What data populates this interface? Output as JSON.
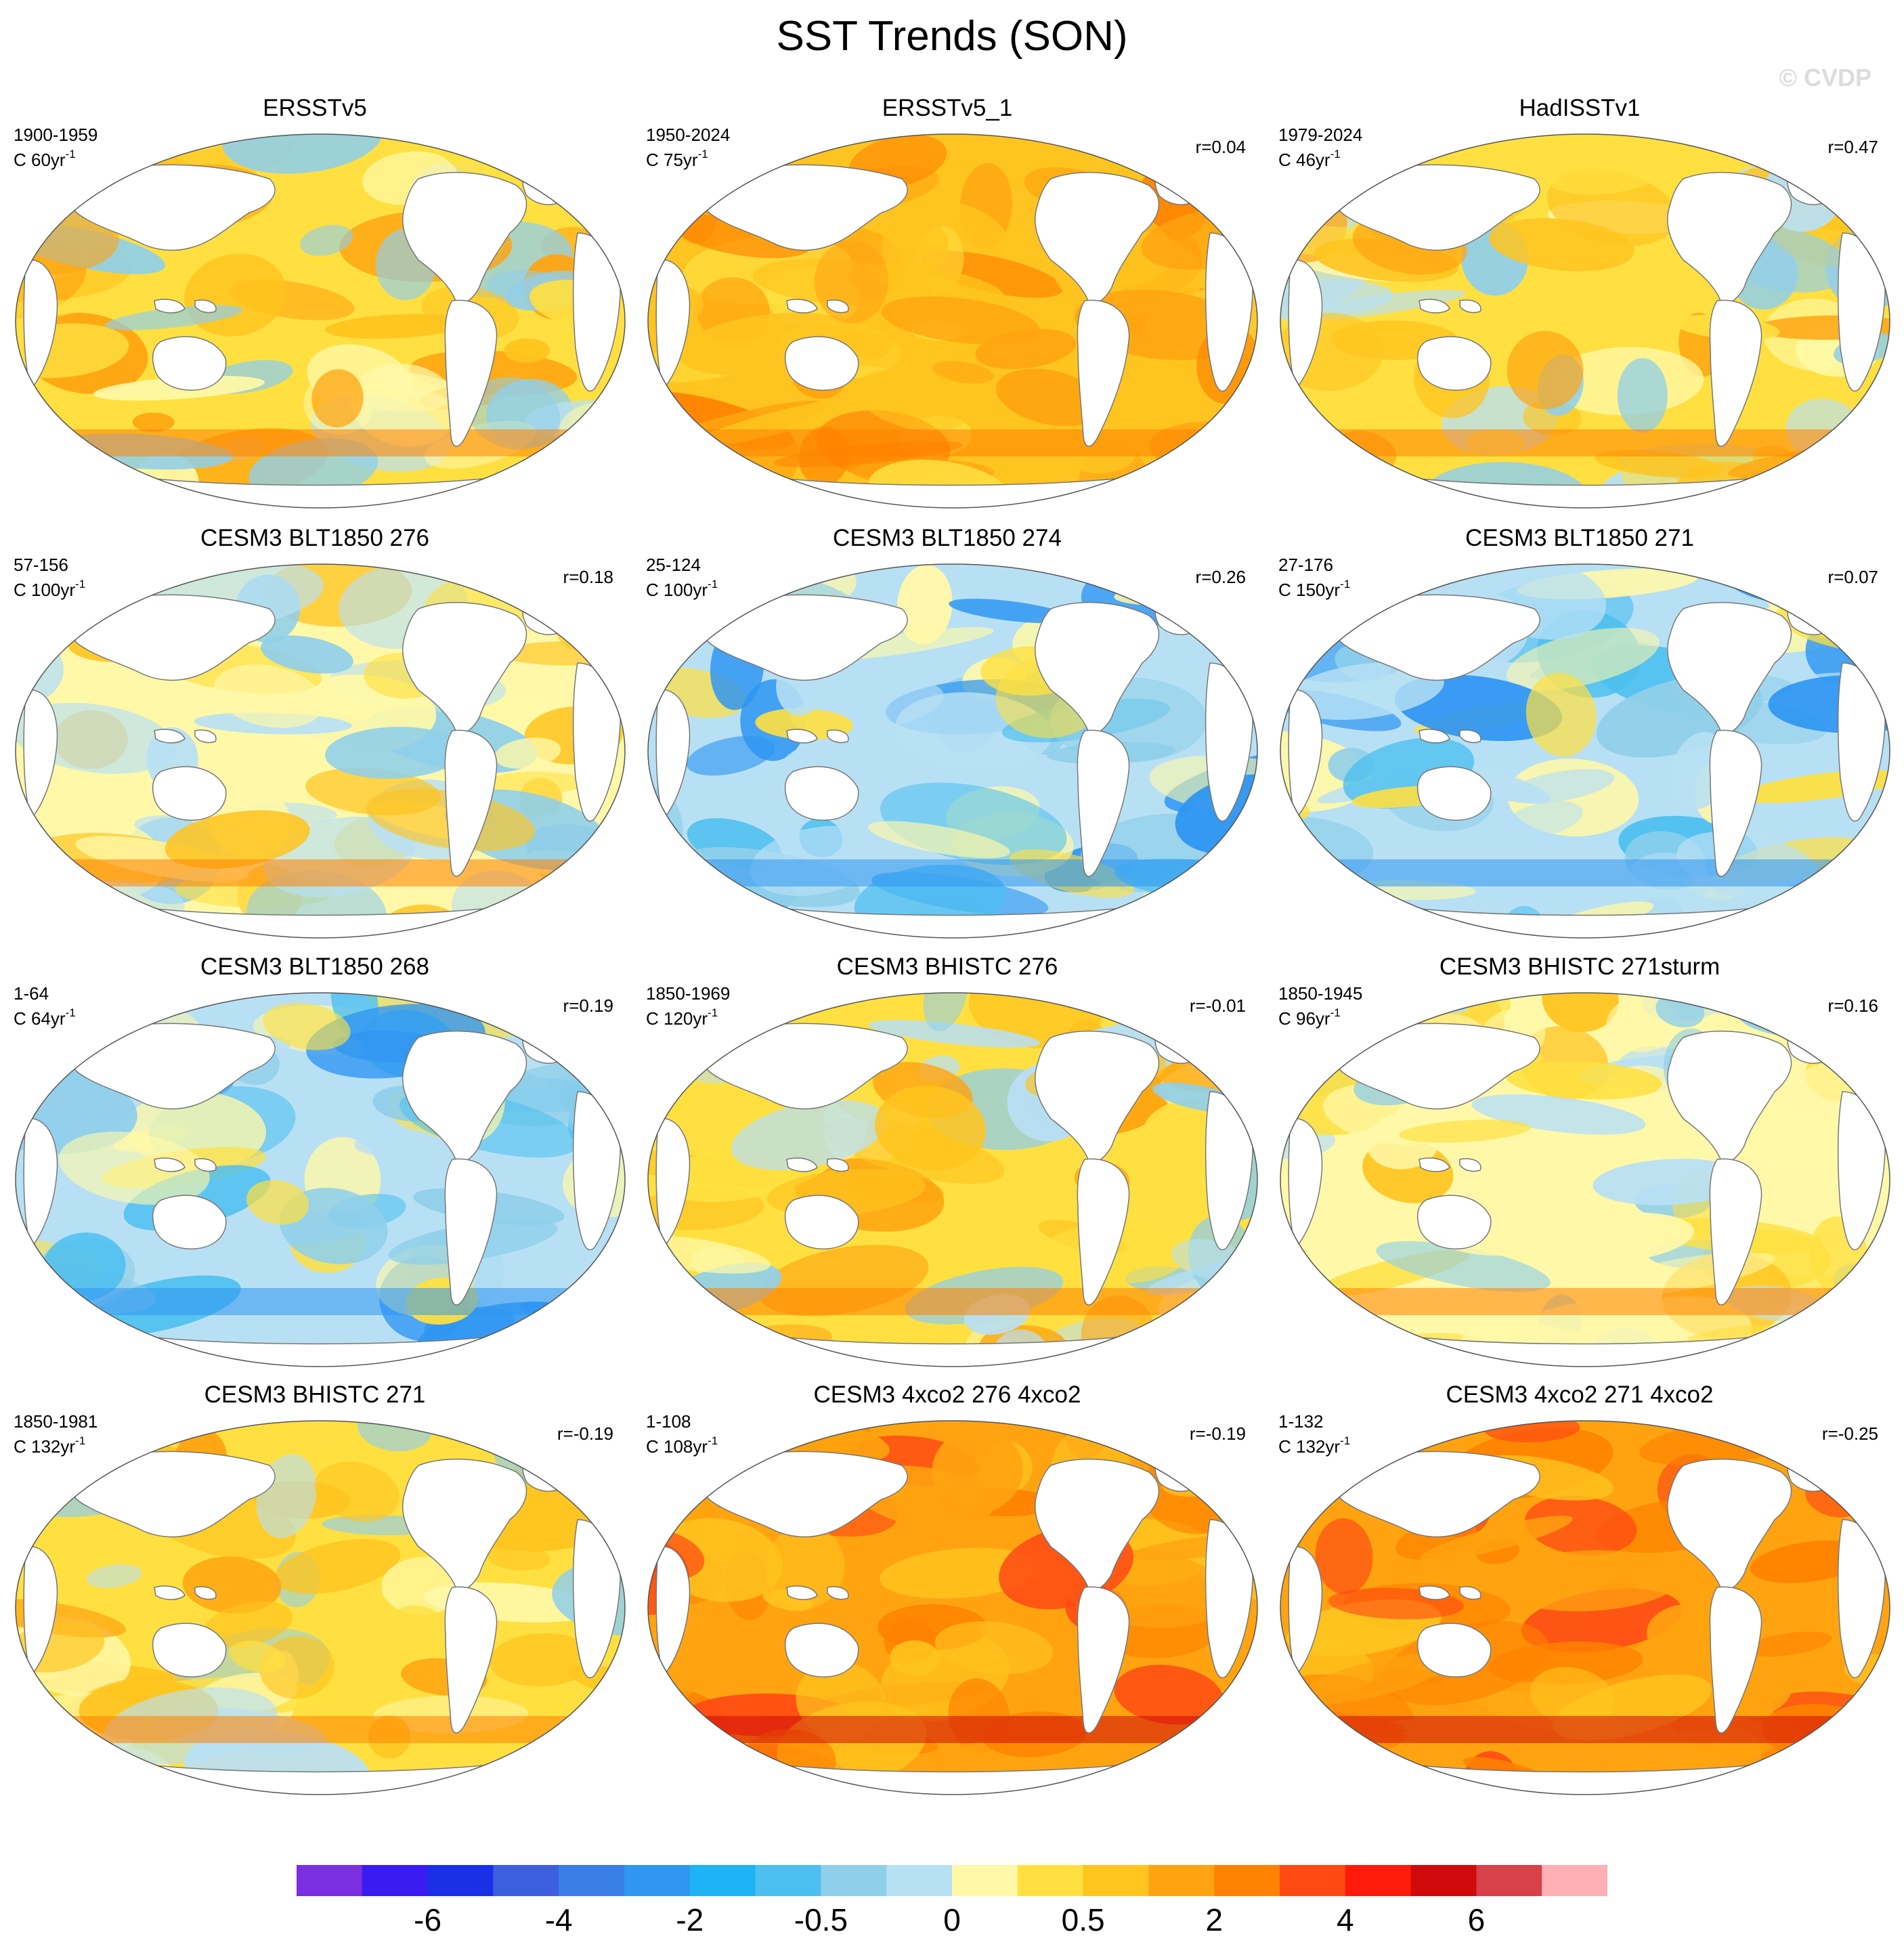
{
  "title": "SST Trends (SON)",
  "watermark": "© CVDP",
  "panels": [
    {
      "title": "ERSSTv5",
      "period": "1900-1959",
      "scale": "C 60yr",
      "r": "",
      "palette": "mixed_warm",
      "seed": 11
    },
    {
      "title": "ERSSTv5_1",
      "period": "1950-2024",
      "scale": "C 75yr",
      "r": "r=0.04",
      "palette": "warm",
      "seed": 23
    },
    {
      "title": "HadISSTv1",
      "period": "1979-2024",
      "scale": "C 46yr",
      "r": "r=0.47",
      "palette": "mixed_warm",
      "seed": 37
    },
    {
      "title": "CESM3 BLT1850 276",
      "period": "57-156",
      "scale": "C 100yr",
      "r": "r=0.18",
      "palette": "neutral",
      "seed": 41
    },
    {
      "title": "CESM3 BLT1850 274",
      "period": "25-124",
      "scale": "C 100yr",
      "r": "r=0.26",
      "palette": "neutral_cool",
      "seed": 53
    },
    {
      "title": "CESM3 BLT1850 271",
      "period": "27-176",
      "scale": "C 150yr",
      "r": "r=0.07",
      "palette": "neutral_cool",
      "seed": 67
    },
    {
      "title": "CESM3 BLT1850 268",
      "period": "1-64",
      "scale": "C 64yr",
      "r": "r=0.19",
      "palette": "neutral_cool",
      "seed": 71
    },
    {
      "title": "CESM3 BHISTC 276",
      "period": "1850-1969",
      "scale": "C 120yr",
      "r": "r=-0.01",
      "palette": "mixed_warm",
      "seed": 83
    },
    {
      "title": "CESM3 BHISTC 271sturm",
      "period": "1850-1945",
      "scale": "C 96yr",
      "r": "r=0.16",
      "palette": "neutral",
      "seed": 97
    },
    {
      "title": "CESM3 BHISTC 271",
      "period": "1850-1981",
      "scale": "C 132yr",
      "r": "r=-0.19",
      "palette": "mixed_warm",
      "seed": 103
    },
    {
      "title": "CESM3 4xco2 276 4xco2",
      "period": "1-108",
      "scale": "C 108yr",
      "r": "r=-0.19",
      "palette": "hot",
      "seed": 113
    },
    {
      "title": "CESM3 4xco2 271 4xco2",
      "period": "1-132",
      "scale": "C 132yr",
      "r": "r=-0.25",
      "palette": "hot",
      "seed": 127
    }
  ],
  "superscript": "-1",
  "colorbar": {
    "colors": [
      "#7a2fe0",
      "#3a1cf0",
      "#1a30e6",
      "#3c5fe0",
      "#3a7ee8",
      "#2f96f2",
      "#1db3f5",
      "#4cbff0",
      "#90cfea",
      "#b8e0f4",
      "#fff8a8",
      "#ffe040",
      "#ffc41f",
      "#ffa410",
      "#ff8200",
      "#ff4a14",
      "#ff1a0a",
      "#d00a0a",
      "#d8404a",
      "#ffb0b4"
    ],
    "labels": [
      "-6",
      "-4",
      "-2",
      "-0.5",
      "0",
      "0.5",
      "2",
      "4",
      "6"
    ]
  },
  "land_color": "#ffffff",
  "coast_color": "#777777"
}
